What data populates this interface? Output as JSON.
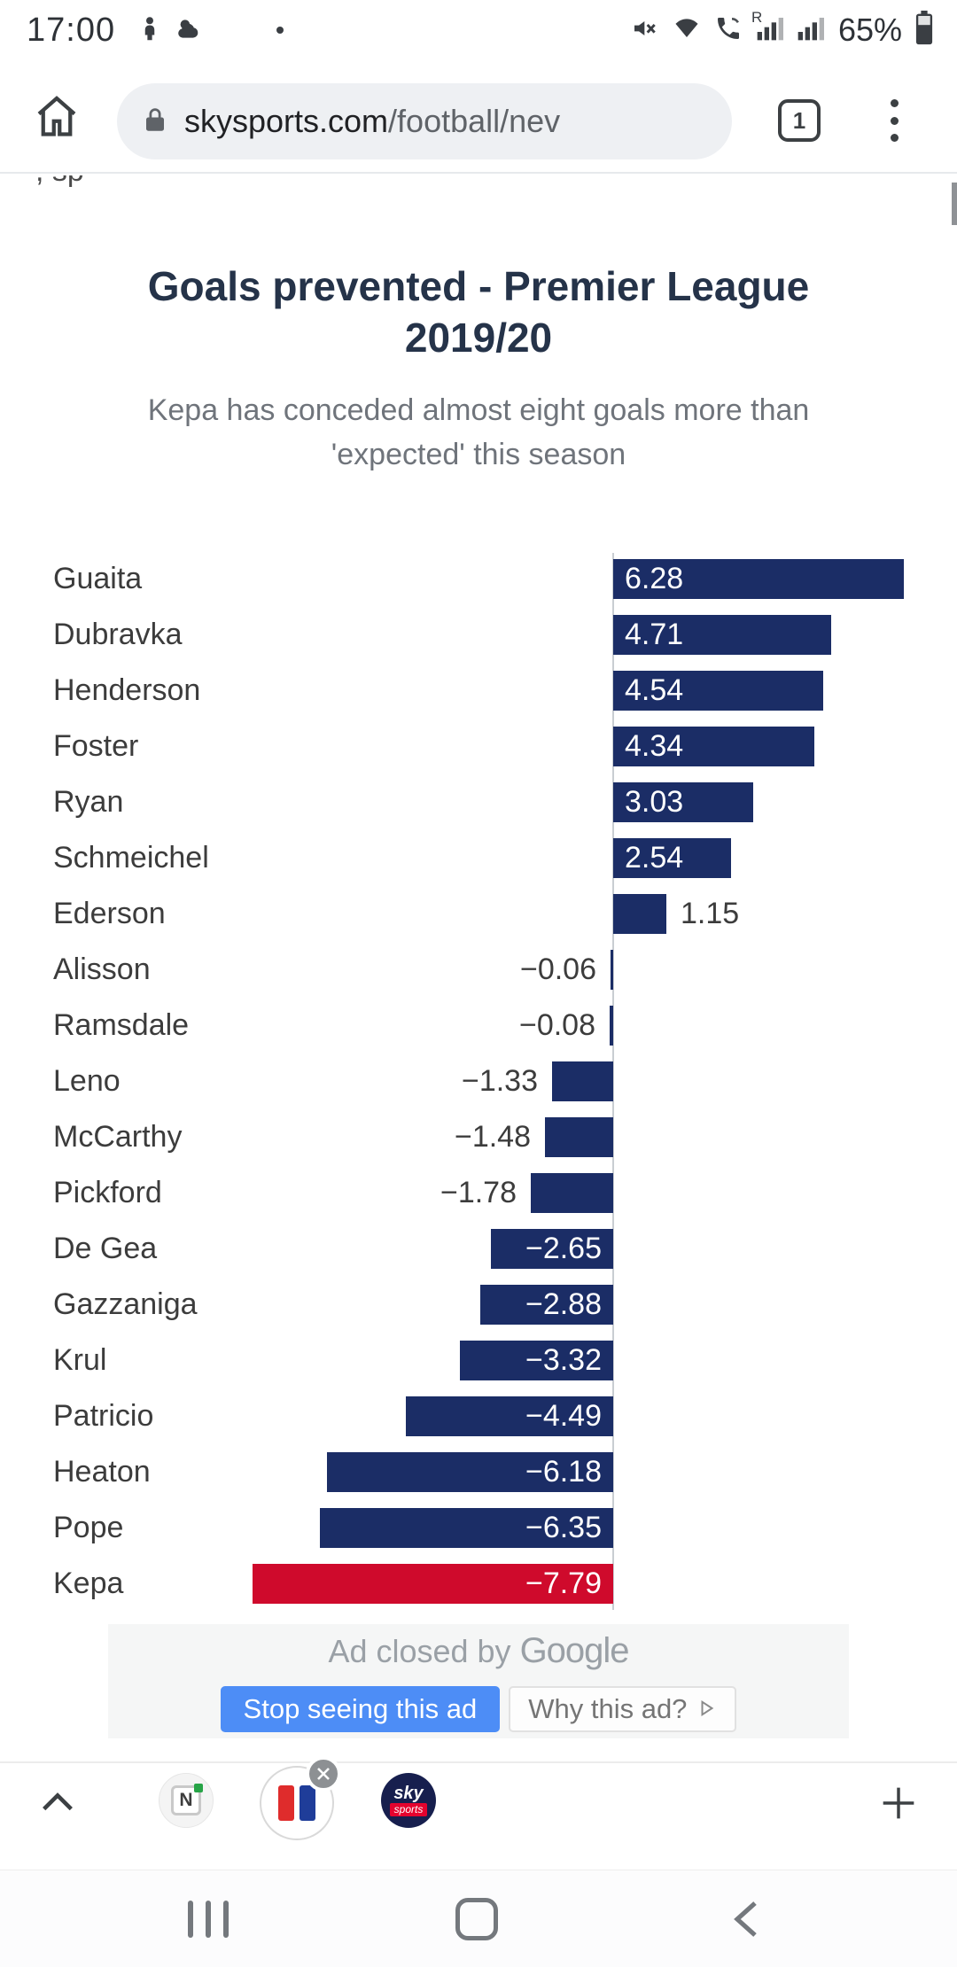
{
  "status_bar": {
    "time": "17:00",
    "battery_percent": "65%",
    "signal_letter": "R"
  },
  "browser_chrome": {
    "url_domain": "skysports.com",
    "url_path": "/football/nev",
    "tab_count": "1"
  },
  "page": {
    "clipped_line": ", sp",
    "title_line1": "Goals prevented - Premier League",
    "title_line2": "2019/20",
    "subtitle_line1": "Kepa has conceded almost eight goals more than",
    "subtitle_line2": "'expected' this season"
  },
  "chart_data": {
    "type": "bar",
    "orientation": "horizontal",
    "title": "Goals prevented - Premier League 2019/20",
    "subtitle": "Kepa has conceded almost eight goals more than 'expected' this season",
    "categories": [
      "Guaita",
      "Dubravka",
      "Henderson",
      "Foster",
      "Ryan",
      "Schmeichel",
      "Ederson",
      "Alisson",
      "Ramsdale",
      "Leno",
      "McCarthy",
      "Pickford",
      "De Gea",
      "Gazzaniga",
      "Krul",
      "Patricio",
      "Heaton",
      "Pope",
      "Kepa"
    ],
    "values": [
      6.28,
      4.71,
      4.54,
      4.34,
      3.03,
      2.54,
      1.15,
      -0.06,
      -0.08,
      -1.33,
      -1.48,
      -1.78,
      -2.65,
      -2.88,
      -3.32,
      -4.49,
      -6.18,
      -6.35,
      -7.79
    ],
    "bar_color": "#1b2d66",
    "highlight_color": "#cf0a2c",
    "highlight_category": "Kepa",
    "xlim": [
      -7.79,
      6.28
    ],
    "grid": false,
    "legend": false,
    "value_labels": "inside bar near zero axis when bar is wide enough, otherwise outside beside bar end"
  },
  "ad": {
    "closed_prefix": "Ad closed by",
    "provider": "Google",
    "stop_button": "Stop seeing this ad",
    "why_button": "Why this ad?"
  },
  "tab_toolbar": {
    "n_icon_letter": "N",
    "sky_word1": "sky",
    "sky_word2": "sports"
  }
}
